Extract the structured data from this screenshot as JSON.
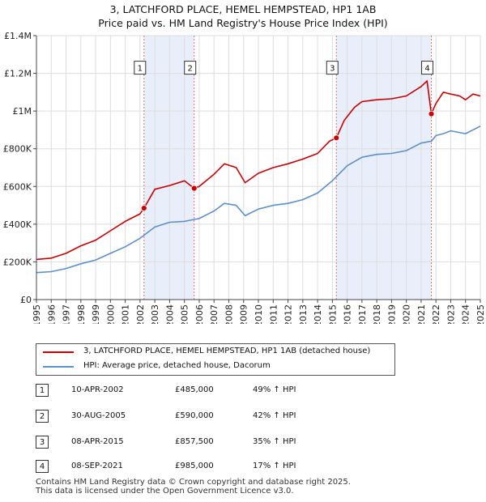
{
  "title": "3, LATCHFORD PLACE, HEMEL HEMPSTEAD, HP1 1AB",
  "subtitle": "Price paid vs. HM Land Registry's House Price Index (HPI)",
  "colors": {
    "property": "#cc0000",
    "hpi": "#5b8fcf",
    "shade": "#e8eefa",
    "grid": "#dddddd",
    "vline": "#e07070"
  },
  "chart_data": {
    "type": "line",
    "title": "3, LATCHFORD PLACE, HEMEL HEMPSTEAD, HP1 1AB",
    "xlabel": "",
    "ylabel": "",
    "xlim": [
      1995,
      2025
    ],
    "ylim": [
      0,
      1400000
    ],
    "x_ticks": [
      "1995",
      "1996",
      "1997",
      "1998",
      "1999",
      "2000",
      "2001",
      "2002",
      "2003",
      "2004",
      "2005",
      "2006",
      "2007",
      "2008",
      "2009",
      "2010",
      "2011",
      "2012",
      "2013",
      "2014",
      "2015",
      "2016",
      "2017",
      "2018",
      "2019",
      "2020",
      "2021",
      "2022",
      "2023",
      "2024",
      "2025"
    ],
    "y_ticks": [
      {
        "value": 0,
        "label": "£0"
      },
      {
        "value": 200000,
        "label": "£200K"
      },
      {
        "value": 400000,
        "label": "£400K"
      },
      {
        "value": 600000,
        "label": "£600K"
      },
      {
        "value": 800000,
        "label": "£800K"
      },
      {
        "value": 1000000,
        "label": "£1M"
      },
      {
        "value": 1200000,
        "label": "£1.2M"
      },
      {
        "value": 1400000,
        "label": "£1.4M"
      }
    ],
    "shaded_periods": [
      [
        2002.27,
        2005.66
      ],
      [
        2015.27,
        2021.69
      ]
    ],
    "series": [
      {
        "name": "3, LATCHFORD PLACE, HEMEL HEMPSTEAD, HP1 1AB (detached house)",
        "color": "#cc0000",
        "points": [
          [
            1995,
            213000
          ],
          [
            1996,
            220000
          ],
          [
            1997,
            245000
          ],
          [
            1998,
            285000
          ],
          [
            1999,
            315000
          ],
          [
            2000,
            365000
          ],
          [
            2001,
            415000
          ],
          [
            2002,
            455000
          ],
          [
            2002.27,
            485000
          ],
          [
            2003,
            585000
          ],
          [
            2004,
            605000
          ],
          [
            2005,
            630000
          ],
          [
            2005.66,
            590000
          ],
          [
            2006,
            600000
          ],
          [
            2007,
            665000
          ],
          [
            2007.7,
            720000
          ],
          [
            2008.5,
            700000
          ],
          [
            2009.1,
            620000
          ],
          [
            2010,
            670000
          ],
          [
            2011,
            700000
          ],
          [
            2012,
            720000
          ],
          [
            2013,
            745000
          ],
          [
            2014,
            775000
          ],
          [
            2014.8,
            840000
          ],
          [
            2015.27,
            857500
          ],
          [
            2015.8,
            950000
          ],
          [
            2016.5,
            1020000
          ],
          [
            2017,
            1050000
          ],
          [
            2018,
            1060000
          ],
          [
            2019,
            1065000
          ],
          [
            2020,
            1080000
          ],
          [
            2021,
            1130000
          ],
          [
            2021.4,
            1160000
          ],
          [
            2021.69,
            985000
          ],
          [
            2022,
            1040000
          ],
          [
            2022.5,
            1100000
          ],
          [
            2023,
            1090000
          ],
          [
            2023.6,
            1080000
          ],
          [
            2024,
            1060000
          ],
          [
            2024.5,
            1090000
          ],
          [
            2025,
            1080000
          ]
        ]
      },
      {
        "name": "HPI: Average price, detached house, Dacorum",
        "color": "#5b8fcf",
        "points": [
          [
            1995,
            143000
          ],
          [
            1996,
            148000
          ],
          [
            1997,
            165000
          ],
          [
            1998,
            190000
          ],
          [
            1999,
            210000
          ],
          [
            2000,
            245000
          ],
          [
            2001,
            280000
          ],
          [
            2002,
            325000
          ],
          [
            2003,
            385000
          ],
          [
            2004,
            410000
          ],
          [
            2005,
            415000
          ],
          [
            2006,
            430000
          ],
          [
            2007,
            470000
          ],
          [
            2007.7,
            510000
          ],
          [
            2008.5,
            500000
          ],
          [
            2009.1,
            445000
          ],
          [
            2010,
            480000
          ],
          [
            2011,
            500000
          ],
          [
            2012,
            510000
          ],
          [
            2013,
            530000
          ],
          [
            2014,
            565000
          ],
          [
            2015,
            630000
          ],
          [
            2016,
            710000
          ],
          [
            2017,
            755000
          ],
          [
            2018,
            770000
          ],
          [
            2019,
            775000
          ],
          [
            2020,
            790000
          ],
          [
            2021,
            830000
          ],
          [
            2021.7,
            840000
          ],
          [
            2022,
            870000
          ],
          [
            2022.5,
            880000
          ],
          [
            2023,
            895000
          ],
          [
            2024,
            880000
          ],
          [
            2025,
            920000
          ]
        ]
      }
    ],
    "sales": [
      {
        "num": "1",
        "x": 2002.27,
        "value": 485000,
        "date": "10-APR-2002",
        "price": "£485,000",
        "hpi": "49% ↑ HPI"
      },
      {
        "num": "2",
        "x": 2005.66,
        "value": 590000,
        "date": "30-AUG-2005",
        "price": "£590,000",
        "hpi": "42% ↑ HPI"
      },
      {
        "num": "3",
        "x": 2015.27,
        "value": 857500,
        "date": "08-APR-2015",
        "price": "£857,500",
        "hpi": "35% ↑ HPI"
      },
      {
        "num": "4",
        "x": 2021.69,
        "value": 985000,
        "date": "08-SEP-2021",
        "price": "£985,000",
        "hpi": "17% ↑ HPI"
      }
    ],
    "label_value": 1230000
  },
  "legend": [
    {
      "label": "3, LATCHFORD PLACE, HEMEL HEMPSTEAD, HP1 1AB (detached house)",
      "color": "#cc0000"
    },
    {
      "label": "HPI: Average price, detached house, Dacorum",
      "color": "#5b8fcf"
    }
  ],
  "footer": {
    "line1": "Contains HM Land Registry data © Crown copyright and database right 2025.",
    "line2": "This data is licensed under the Open Government Licence v3.0."
  }
}
